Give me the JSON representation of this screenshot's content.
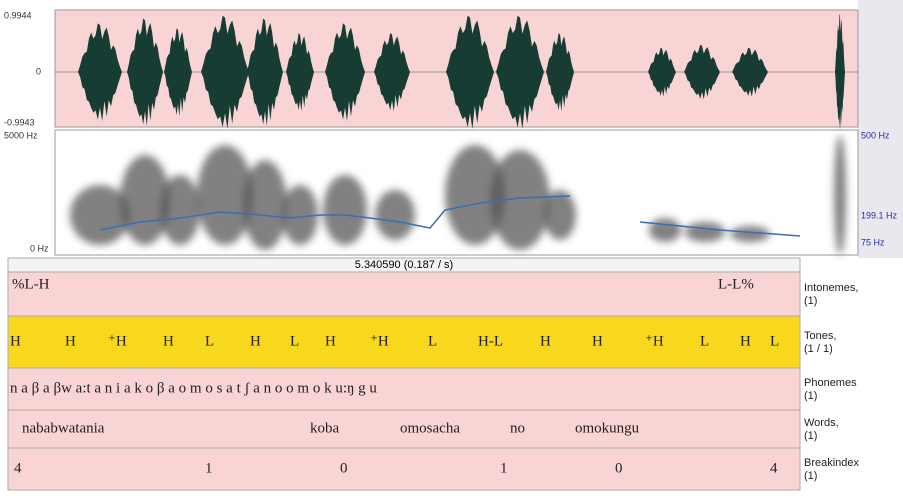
{
  "waveform": {
    "max_label": "0.9944",
    "zero_label": "0",
    "min_label": "-0.9943"
  },
  "spectrogram": {
    "top_label": "5000 Hz",
    "bottom_label": "0 Hz",
    "pitch_top": "500 Hz",
    "pitch_mid": "199.1 Hz",
    "pitch_bottom": "75 Hz"
  },
  "cursor": "5.340590 (0.187 / s)",
  "tiers": [
    {
      "name": "Intonemes,",
      "count": "(1)",
      "labels": [
        "%L-H",
        "L-L%"
      ]
    },
    {
      "name": "Tones,",
      "count": "(1 / 1)",
      "labels": [
        "H",
        "H",
        "⁺H",
        "H",
        "L",
        "H",
        "L",
        "H",
        "⁺H",
        "L",
        "H-L",
        "H",
        "H",
        "⁺H",
        "L",
        "H",
        "L"
      ]
    },
    {
      "name": "Phonemes",
      "count": "(1)",
      "labels": [
        "n a β a βw a:t a n i a k o β a o m o s a t ʃ a n o o m o k u:ŋ g u"
      ]
    },
    {
      "name": "Words,",
      "count": "(1)",
      "labels": [
        "nababwatania",
        "koba",
        "omosacha",
        "no",
        "omokungu"
      ]
    },
    {
      "name": "Breakindex",
      "count": "(1)",
      "labels": [
        "4",
        "1",
        "0",
        "1",
        "0",
        "4"
      ]
    }
  ]
}
